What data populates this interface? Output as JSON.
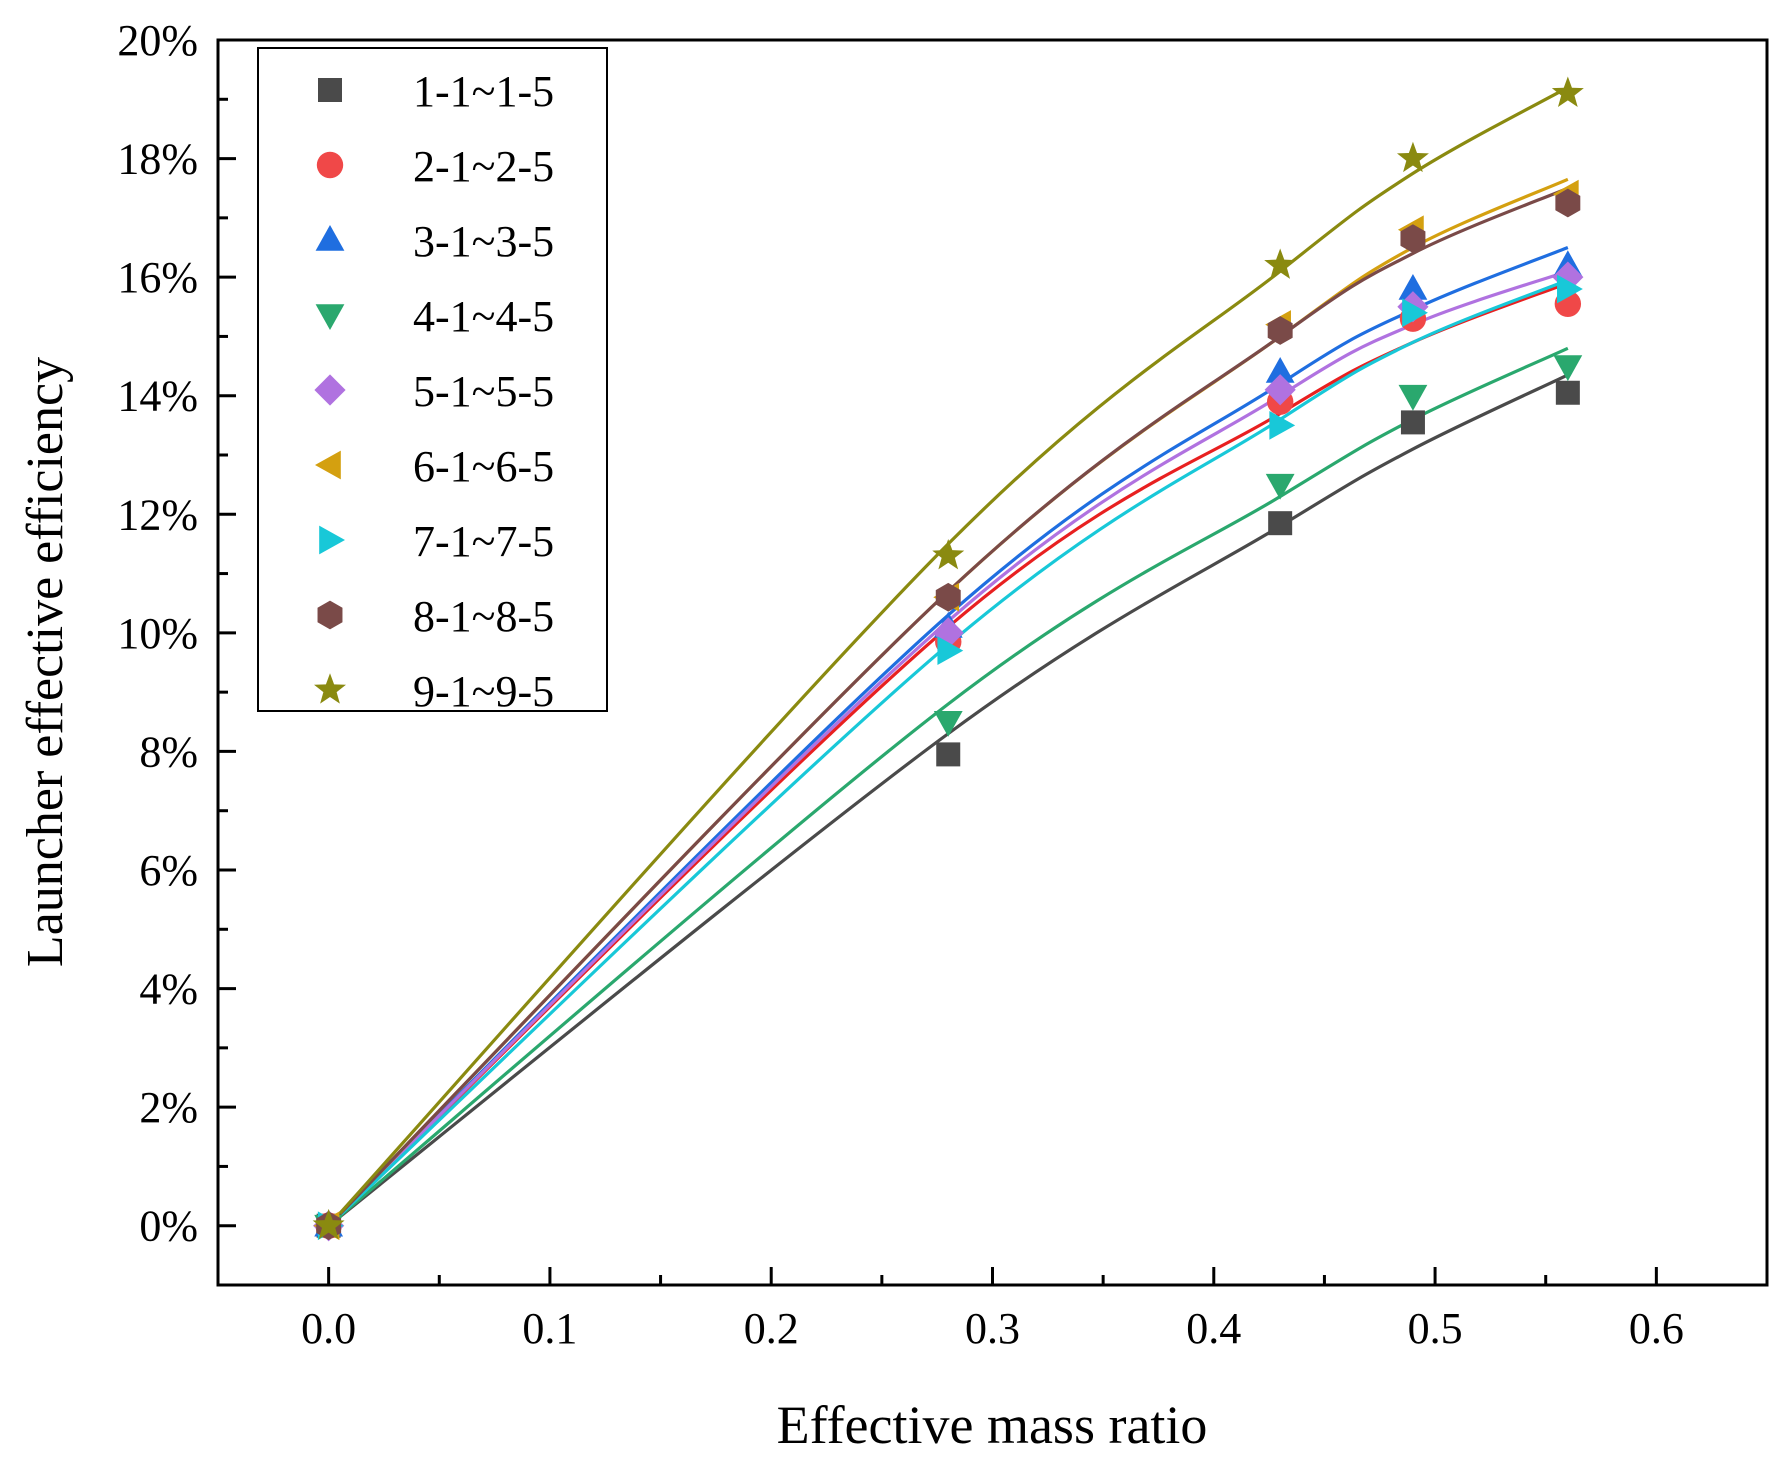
{
  "chart_data": {
    "type": "scatter",
    "xlabel": "Effective mass ratio",
    "ylabel": "Launcher effective efficiency",
    "xlim": [
      -0.05,
      0.65
    ],
    "ylim": [
      -1,
      20
    ],
    "x_ticks": [
      0.0,
      0.1,
      0.2,
      0.3,
      0.4,
      0.5,
      0.6
    ],
    "x_tick_labels": [
      "0.0",
      "0.1",
      "0.2",
      "0.3",
      "0.4",
      "0.5",
      "0.6"
    ],
    "y_ticks": [
      0,
      2,
      4,
      6,
      8,
      10,
      12,
      14,
      16,
      18,
      20
    ],
    "y_tick_labels": [
      "0%",
      "2%",
      "4%",
      "6%",
      "8%",
      "10%",
      "12%",
      "14%",
      "16%",
      "18%",
      "20%"
    ],
    "grid": false,
    "legend_position": "top-left",
    "x": [
      0,
      0.28,
      0.43,
      0.49,
      0.56
    ],
    "series": [
      {
        "name": "1-1~1-5",
        "marker": "square",
        "color": "#4a4a4a",
        "values": [
          0,
          7.95,
          11.85,
          13.55,
          14.05
        ]
      },
      {
        "name": "2-1~2-5",
        "marker": "circle",
        "color": "#f04848",
        "values": [
          0,
          9.85,
          13.9,
          15.3,
          15.55
        ]
      },
      {
        "name": "3-1~3-5",
        "marker": "triangle-up",
        "color": "#1f6ee0",
        "values": [
          0,
          10.1,
          14.4,
          15.8,
          16.2
        ]
      },
      {
        "name": "4-1~4-5",
        "marker": "triangle-down",
        "color": "#2aa86e",
        "values": [
          0,
          8.5,
          12.5,
          14.0,
          14.5
        ]
      },
      {
        "name": "5-1~5-5",
        "marker": "diamond",
        "color": "#b072e0",
        "values": [
          0,
          10.0,
          14.1,
          15.5,
          16.0
        ]
      },
      {
        "name": "6-1~6-5",
        "marker": "triangle-left",
        "color": "#d4a010",
        "values": [
          0,
          10.6,
          15.2,
          16.8,
          17.4
        ]
      },
      {
        "name": "7-1~7-5",
        "marker": "triangle-right",
        "color": "#18c8d8",
        "values": [
          0,
          9.7,
          13.5,
          15.4,
          15.8
        ]
      },
      {
        "name": "8-1~8-5",
        "marker": "hexagon",
        "color": "#7a4a48",
        "values": [
          0,
          10.6,
          15.1,
          16.65,
          17.25
        ]
      },
      {
        "name": "9-1~9-5",
        "marker": "star",
        "color": "#8a8a10",
        "values": [
          0,
          11.3,
          16.2,
          18.0,
          19.1
        ]
      }
    ],
    "fit_curves": [
      {
        "name": "1-1~1-5",
        "color": "#4a4a4a",
        "values": [
          0,
          8.3,
          11.8,
          13.1,
          14.35
        ]
      },
      {
        "name": "2-1~2-5",
        "color": "#e82020",
        "values": [
          0,
          10.1,
          13.7,
          14.9,
          15.9
        ]
      },
      {
        "name": "3-1~3-5",
        "color": "#1f6ee0",
        "values": [
          0,
          10.3,
          14.2,
          15.45,
          16.5
        ]
      },
      {
        "name": "4-1~4-5",
        "color": "#2aa86e",
        "values": [
          0,
          8.8,
          12.3,
          13.6,
          14.8
        ]
      },
      {
        "name": "5-1~5-5",
        "color": "#b072e0",
        "values": [
          0,
          10.2,
          14.0,
          15.2,
          16.1
        ]
      },
      {
        "name": "6-1~6-5",
        "color": "#d4a010",
        "values": [
          0,
          10.7,
          15.0,
          16.5,
          17.65
        ]
      },
      {
        "name": "7-1~7-5",
        "color": "#18c8d8",
        "values": [
          0,
          9.8,
          13.6,
          14.9,
          15.95
        ]
      },
      {
        "name": "8-1~8-5",
        "color": "#7a4a48",
        "values": [
          0,
          10.7,
          15.0,
          16.4,
          17.5
        ]
      },
      {
        "name": "9-1~9-5",
        "color": "#8a8a10",
        "values": [
          0,
          11.5,
          16.1,
          17.75,
          19.2
        ]
      }
    ]
  }
}
